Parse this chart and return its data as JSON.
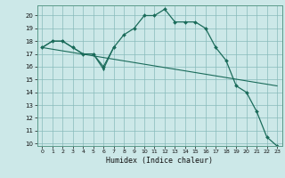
{
  "xlabel": "Humidex (Indice chaleur)",
  "background_color": "#cce8e8",
  "grid_color": "#88bbbb",
  "line_color": "#1a6b5a",
  "xlim": [
    -0.5,
    23.5
  ],
  "ylim": [
    9.8,
    20.8
  ],
  "yticks": [
    10,
    11,
    12,
    13,
    14,
    15,
    16,
    17,
    18,
    19,
    20
  ],
  "xticks": [
    0,
    1,
    2,
    3,
    4,
    5,
    6,
    7,
    8,
    9,
    10,
    11,
    12,
    13,
    14,
    15,
    16,
    17,
    18,
    19,
    20,
    21,
    22,
    23
  ],
  "line1_x": [
    0,
    1,
    2,
    3,
    4,
    5,
    6,
    7,
    8,
    9,
    10,
    11,
    12,
    13,
    14,
    15,
    16,
    17,
    18,
    19,
    20,
    21,
    22,
    23
  ],
  "line1_y": [
    17.5,
    18.0,
    18.0,
    17.5,
    17.0,
    17.0,
    16.0,
    17.5,
    18.5,
    19.0,
    20.0,
    20.0,
    20.5,
    19.5,
    19.5,
    19.5,
    19.0,
    17.5,
    16.5,
    14.5,
    14.0,
    12.5,
    10.5,
    9.8
  ],
  "line2_x": [
    0,
    23
  ],
  "line2_y": [
    17.5,
    14.5
  ],
  "line3_x": [
    0,
    1,
    2,
    3,
    4,
    5,
    6,
    7
  ],
  "line3_y": [
    17.5,
    18.0,
    18.0,
    17.5,
    17.0,
    17.0,
    15.8,
    17.5
  ]
}
